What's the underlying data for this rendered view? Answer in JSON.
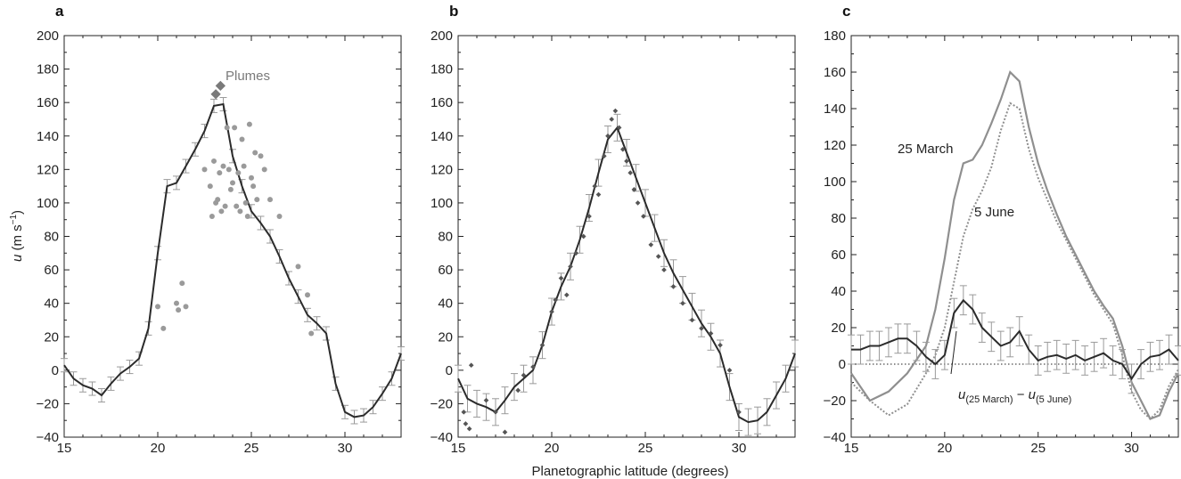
{
  "figure": {
    "xlabel": "Planetographic latitude (degrees)",
    "ylabel_var": "u",
    "ylabel_unit": " (m s",
    "ylabel_sup": "−1",
    "ylabel_close": ")"
  },
  "chart_data": [
    {
      "id": "a",
      "type": "line",
      "panel_label": "a",
      "xlim": [
        15,
        33
      ],
      "ylim": [
        -40,
        200
      ],
      "xticks": [
        15,
        20,
        25,
        30
      ],
      "yticks": [
        -40,
        -20,
        0,
        20,
        40,
        60,
        80,
        100,
        120,
        140,
        160,
        180,
        200
      ],
      "series": [
        {
          "kind": "profile",
          "color": "#2b2b2b",
          "errorbar": 4,
          "x": [
            15,
            15.5,
            16,
            16.5,
            17,
            17.5,
            18,
            18.5,
            19,
            19.5,
            20,
            20.5,
            21,
            21.5,
            22,
            22.5,
            23,
            23.5,
            24,
            24.5,
            25,
            25.5,
            26,
            26.5,
            27,
            27.5,
            28,
            28.5,
            29,
            29.5,
            30,
            30.5,
            31,
            31.5,
            32,
            32.5,
            33
          ],
          "y": [
            3,
            -5,
            -9,
            -11,
            -15,
            -8,
            -2,
            2,
            7,
            25,
            70,
            110,
            112,
            122,
            132,
            143,
            158,
            159,
            128,
            110,
            95,
            88,
            80,
            68,
            55,
            44,
            33,
            28,
            22,
            -8,
            -25,
            -28,
            -27,
            -22,
            -14,
            -5,
            10
          ]
        },
        {
          "kind": "scatter-dots",
          "color": "#9a9a9a",
          "x": [
            20,
            20.3,
            21,
            21.1,
            21.3,
            21.5,
            22.5,
            22.8,
            22.9,
            23,
            23.1,
            23.2,
            23.3,
            23.4,
            23.5,
            23.6,
            23.7,
            23.8,
            23.9,
            24,
            24.1,
            24.2,
            24.3,
            24.4,
            24.5,
            24.6,
            24.7,
            24.8,
            24.9,
            25,
            25.1,
            25.2,
            25.3,
            25.5,
            25.7,
            26,
            26.5,
            27.5,
            28,
            28.2
          ],
          "y": [
            38,
            25,
            40,
            36,
            52,
            38,
            120,
            110,
            92,
            125,
            100,
            102,
            118,
            95,
            122,
            98,
            145,
            120,
            108,
            112,
            145,
            98,
            118,
            95,
            138,
            122,
            100,
            92,
            147,
            115,
            110,
            130,
            102,
            128,
            120,
            102,
            92,
            62,
            45,
            22
          ]
        },
        {
          "kind": "markers-diamond",
          "name": "Plumes",
          "color": "#7a7a7a",
          "x": [
            23.1,
            23.35
          ],
          "y": [
            165,
            170
          ]
        }
      ]
    },
    {
      "id": "b",
      "type": "line",
      "panel_label": "b",
      "xlim": [
        15,
        33
      ],
      "ylim": [
        -40,
        200
      ],
      "xticks": [
        15,
        20,
        25,
        30
      ],
      "yticks": [
        -40,
        -20,
        0,
        20,
        40,
        60,
        80,
        100,
        120,
        140,
        160,
        180,
        200
      ],
      "series": [
        {
          "kind": "profile",
          "color": "#2b2b2b",
          "errorbar": 8,
          "x": [
            15,
            15.5,
            16,
            16.5,
            17,
            17.5,
            18,
            18.5,
            19,
            19.5,
            20,
            20.5,
            21,
            21.5,
            22,
            22.5,
            23,
            23.5,
            24,
            24.5,
            25,
            25.5,
            26,
            26.5,
            27,
            27.5,
            28,
            28.5,
            29,
            29.5,
            30,
            30.5,
            31,
            31.5,
            32,
            32.5,
            33
          ],
          "y": [
            -5,
            -17,
            -20,
            -22,
            -25,
            -18,
            -10,
            -5,
            0,
            15,
            35,
            50,
            62,
            78,
            97,
            118,
            138,
            145,
            130,
            115,
            100,
            85,
            70,
            58,
            48,
            38,
            28,
            20,
            10,
            -10,
            -28,
            -31,
            -30,
            -25,
            -15,
            -5,
            10
          ]
        },
        {
          "kind": "scatter-small-diamonds",
          "color": "#555555",
          "x": [
            15.3,
            15.4,
            15.6,
            15.7,
            16.5,
            17,
            17.5,
            18.2,
            18.5,
            19,
            19.5,
            20,
            20.2,
            20.5,
            20.8,
            21,
            21.3,
            21.7,
            22,
            22.3,
            22.5,
            22.8,
            23,
            23.2,
            23.4,
            23.6,
            23.8,
            24,
            24.2,
            24.4,
            24.6,
            24.9,
            25.3,
            25.7,
            26,
            26.5,
            27,
            27.5,
            28,
            28.5,
            29,
            29.5,
            30
          ],
          "y": [
            -25,
            -32,
            -35,
            3,
            -18,
            -25,
            -37,
            -12,
            -3,
            2,
            15,
            35,
            42,
            55,
            45,
            62,
            70,
            80,
            92,
            110,
            105,
            128,
            140,
            150,
            155,
            145,
            132,
            125,
            118,
            108,
            100,
            92,
            75,
            68,
            60,
            50,
            40,
            30,
            25,
            22,
            15,
            0,
            -25
          ]
        }
      ]
    },
    {
      "id": "c",
      "type": "line",
      "panel_label": "c",
      "xlim": [
        15,
        32.5
      ],
      "ylim": [
        -40,
        180
      ],
      "xticks": [
        15,
        20,
        25,
        30
      ],
      "yticks": [
        -40,
        -20,
        0,
        20,
        40,
        60,
        80,
        100,
        120,
        140,
        160,
        180
      ],
      "zero_line": true,
      "series": [
        {
          "kind": "line-solid",
          "name": "25 March",
          "color": "#8f8f8f",
          "x": [
            15,
            16,
            17,
            18,
            19,
            19.5,
            20,
            20.5,
            21,
            21.5,
            22,
            22.5,
            23,
            23.5,
            24,
            24.5,
            25,
            25.5,
            26,
            26.5,
            27,
            27.5,
            28,
            28.5,
            29,
            29.5,
            30,
            30.5,
            31,
            31.5,
            32,
            32.5
          ],
          "y": [
            -5,
            -20,
            -15,
            -5,
            10,
            30,
            58,
            90,
            110,
            112,
            120,
            132,
            145,
            160,
            155,
            130,
            110,
            95,
            82,
            70,
            60,
            50,
            40,
            32,
            25,
            10,
            -10,
            -20,
            -30,
            -28,
            -15,
            -5
          ]
        },
        {
          "kind": "line-dotted",
          "name": "5 June",
          "color": "#8f8f8f",
          "x": [
            15,
            16,
            17,
            18,
            19,
            19.5,
            20,
            20.5,
            21,
            21.5,
            22,
            22.5,
            23,
            23.5,
            24,
            24.5,
            25,
            25.5,
            26,
            26.5,
            27,
            27.5,
            28,
            28.5,
            29,
            29.5,
            30,
            30.5,
            31,
            31.5,
            32,
            32.5
          ],
          "y": [
            -10,
            -20,
            -28,
            -22,
            -5,
            5,
            20,
            45,
            70,
            85,
            95,
            108,
            128,
            143,
            140,
            118,
            102,
            90,
            78,
            68,
            58,
            48,
            38,
            30,
            22,
            5,
            -15,
            -25,
            -30,
            -25,
            -12,
            -3
          ]
        },
        {
          "kind": "profile",
          "name": "u(25 March) − u(5 June)",
          "color": "#2b2b2b",
          "errorbar": 8,
          "x": [
            15,
            15.5,
            16,
            16.5,
            17,
            17.5,
            18,
            18.5,
            19,
            19.5,
            20,
            20.5,
            21,
            21.5,
            22,
            22.5,
            23,
            23.5,
            24,
            24.5,
            25,
            25.5,
            26,
            26.5,
            27,
            27.5,
            28,
            28.5,
            29,
            29.5,
            30,
            30.5,
            31,
            31.5,
            32,
            32.5
          ],
          "y": [
            8,
            8,
            10,
            10,
            12,
            14,
            14,
            10,
            4,
            0,
            5,
            28,
            35,
            30,
            20,
            15,
            10,
            12,
            18,
            8,
            2,
            4,
            5,
            3,
            5,
            2,
            4,
            6,
            2,
            0,
            -8,
            0,
            4,
            5,
            8,
            2
          ]
        }
      ],
      "annotations": {
        "march": "25 March",
        "june": "5 June",
        "diff_var": "u",
        "diff_sub1": "(25 March)",
        "diff_minus": " − ",
        "diff_sub2": "(5 June)"
      }
    }
  ]
}
